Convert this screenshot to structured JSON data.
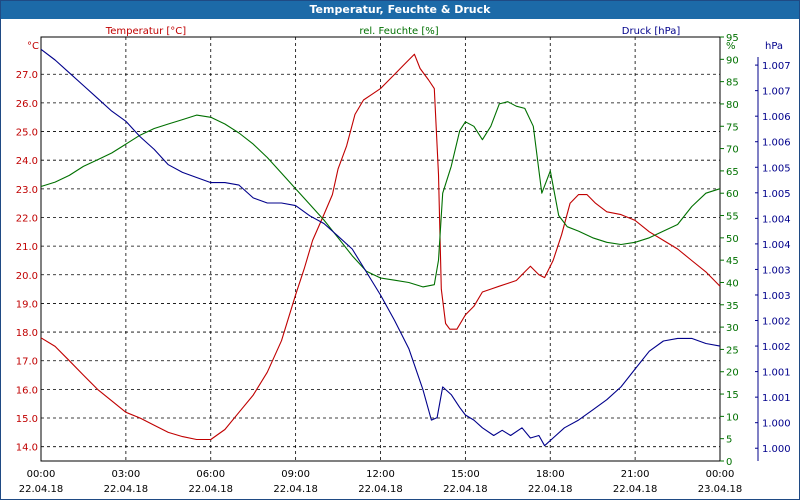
{
  "window": {
    "title": "Temperatur, Feuchte & Druck"
  },
  "colors": {
    "temperature": "#c00000",
    "humidity": "#007000",
    "pressure": "#00008b",
    "grid": "#000000",
    "title_bar": "#1c6aa8"
  },
  "chart_data": {
    "type": "line",
    "title": "Temperatur, Feuchte & Druck",
    "grid": true,
    "x": {
      "range": [
        0,
        24
      ],
      "tick_times": [
        "00:00",
        "03:00",
        "06:00",
        "09:00",
        "12:00",
        "15:00",
        "18:00",
        "21:00",
        "00:00"
      ],
      "tick_dates": [
        "22.04.18",
        "22.04.18",
        "22.04.18",
        "22.04.18",
        "22.04.18",
        "22.04.18",
        "22.04.18",
        "22.04.18",
        "23.04.18"
      ]
    },
    "axes": {
      "temperature": {
        "unit_label": "°C",
        "range": [
          13.5,
          28.3
        ],
        "ticks": [
          "14.0",
          "15.0",
          "16.0",
          "17.0",
          "18.0",
          "19.0",
          "20.0",
          "21.0",
          "22.0",
          "23.0",
          "24.0",
          "25.0",
          "26.0",
          "27.0"
        ]
      },
      "humidity": {
        "unit_label": "%",
        "range": [
          0,
          95
        ],
        "ticks": [
          "0",
          "5",
          "10",
          "15",
          "20",
          "25",
          "30",
          "35",
          "40",
          "45",
          "50",
          "55",
          "60",
          "65",
          "70",
          "75",
          "80",
          "85",
          "90",
          "95"
        ]
      },
      "pressure": {
        "unit_label": "hPa",
        "range": [
          0.9995,
          1.0078
        ],
        "ticks": [
          "1.000",
          "1.000",
          "1.001",
          "1.001",
          "1.002",
          "1.002",
          "1.003",
          "1.003",
          "1.004",
          "1.004",
          "1.005",
          "1.005",
          "1.006",
          "1.006",
          "1.007",
          "1.007"
        ]
      }
    },
    "series": [
      {
        "name": "Temperatur [°C]",
        "axis": "temperature",
        "color": "#c00000",
        "points": [
          [
            0.0,
            17.8
          ],
          [
            0.5,
            17.5
          ],
          [
            1.0,
            17.0
          ],
          [
            1.5,
            16.5
          ],
          [
            2.0,
            16.0
          ],
          [
            2.5,
            15.6
          ],
          [
            3.0,
            15.2
          ],
          [
            3.5,
            15.0
          ],
          [
            4.0,
            14.75
          ],
          [
            4.5,
            14.5
          ],
          [
            5.0,
            14.35
          ],
          [
            5.5,
            14.25
          ],
          [
            6.0,
            14.25
          ],
          [
            6.5,
            14.6
          ],
          [
            7.0,
            15.2
          ],
          [
            7.5,
            15.8
          ],
          [
            8.0,
            16.6
          ],
          [
            8.5,
            17.7
          ],
          [
            9.0,
            19.3
          ],
          [
            9.3,
            20.2
          ],
          [
            9.6,
            21.2
          ],
          [
            10.0,
            22.1
          ],
          [
            10.3,
            22.8
          ],
          [
            10.5,
            23.7
          ],
          [
            10.8,
            24.5
          ],
          [
            11.1,
            25.6
          ],
          [
            11.4,
            26.1
          ],
          [
            11.7,
            26.3
          ],
          [
            12.0,
            26.5
          ],
          [
            12.3,
            26.8
          ],
          [
            12.6,
            27.1
          ],
          [
            12.8,
            27.3
          ],
          [
            13.0,
            27.5
          ],
          [
            13.2,
            27.7
          ],
          [
            13.4,
            27.2
          ],
          [
            13.7,
            26.8
          ],
          [
            13.9,
            26.5
          ],
          [
            14.05,
            23.5
          ],
          [
            14.15,
            19.5
          ],
          [
            14.3,
            18.3
          ],
          [
            14.45,
            18.1
          ],
          [
            14.7,
            18.1
          ],
          [
            15.0,
            18.6
          ],
          [
            15.3,
            18.9
          ],
          [
            15.6,
            19.4
          ],
          [
            15.9,
            19.5
          ],
          [
            16.2,
            19.6
          ],
          [
            16.5,
            19.7
          ],
          [
            16.8,
            19.8
          ],
          [
            17.1,
            20.1
          ],
          [
            17.3,
            20.3
          ],
          [
            17.6,
            20.0
          ],
          [
            17.8,
            19.9
          ],
          [
            18.1,
            20.5
          ],
          [
            18.4,
            21.4
          ],
          [
            18.7,
            22.5
          ],
          [
            19.0,
            22.8
          ],
          [
            19.3,
            22.8
          ],
          [
            19.6,
            22.5
          ],
          [
            20.0,
            22.2
          ],
          [
            20.5,
            22.1
          ],
          [
            21.0,
            21.9
          ],
          [
            21.5,
            21.5
          ],
          [
            22.0,
            21.2
          ],
          [
            22.5,
            20.9
          ],
          [
            23.0,
            20.5
          ],
          [
            23.5,
            20.1
          ],
          [
            24.0,
            19.6
          ]
        ]
      },
      {
        "name": "rel. Feuchte [%]",
        "axis": "humidity",
        "color": "#007000",
        "points": [
          [
            0.0,
            61.5
          ],
          [
            0.5,
            62.5
          ],
          [
            1.0,
            64.0
          ],
          [
            1.5,
            66.0
          ],
          [
            2.0,
            67.5
          ],
          [
            2.5,
            69.0
          ],
          [
            3.0,
            71.0
          ],
          [
            3.5,
            73.0
          ],
          [
            4.0,
            74.5
          ],
          [
            4.5,
            75.5
          ],
          [
            5.0,
            76.5
          ],
          [
            5.5,
            77.5
          ],
          [
            6.0,
            77.0
          ],
          [
            6.5,
            75.5
          ],
          [
            7.0,
            73.5
          ],
          [
            7.5,
            71.0
          ],
          [
            8.0,
            68.0
          ],
          [
            8.5,
            64.5
          ],
          [
            9.0,
            61.0
          ],
          [
            9.5,
            57.5
          ],
          [
            10.0,
            54.0
          ],
          [
            10.5,
            50.0
          ],
          [
            11.0,
            46.0
          ],
          [
            11.5,
            42.5
          ],
          [
            12.0,
            41.0
          ],
          [
            12.5,
            40.5
          ],
          [
            13.0,
            40.0
          ],
          [
            13.5,
            39.0
          ],
          [
            13.9,
            39.5
          ],
          [
            14.05,
            45.0
          ],
          [
            14.2,
            60.0
          ],
          [
            14.5,
            66.0
          ],
          [
            14.8,
            74.0
          ],
          [
            15.0,
            76.0
          ],
          [
            15.3,
            75.0
          ],
          [
            15.6,
            72.0
          ],
          [
            15.9,
            75.0
          ],
          [
            16.2,
            80.0
          ],
          [
            16.5,
            80.5
          ],
          [
            16.8,
            79.5
          ],
          [
            17.1,
            79.0
          ],
          [
            17.4,
            75.0
          ],
          [
            17.7,
            60.0
          ],
          [
            18.0,
            65.0
          ],
          [
            18.3,
            55.0
          ],
          [
            18.6,
            52.5
          ],
          [
            19.0,
            51.5
          ],
          [
            19.5,
            50.0
          ],
          [
            20.0,
            49.0
          ],
          [
            20.5,
            48.5
          ],
          [
            21.0,
            49.0
          ],
          [
            21.5,
            50.0
          ],
          [
            22.0,
            51.5
          ],
          [
            22.5,
            53.0
          ],
          [
            23.0,
            57.0
          ],
          [
            23.5,
            60.0
          ],
          [
            24.0,
            61.0
          ]
        ]
      },
      {
        "name": "Druck [hPa]",
        "axis": "pressure",
        "color": "#00008b",
        "points": [
          [
            0.0,
            1.00756
          ],
          [
            0.5,
            1.00735
          ],
          [
            1.0,
            1.0071
          ],
          [
            1.5,
            1.00685
          ],
          [
            2.0,
            1.0066
          ],
          [
            2.5,
            1.00635
          ],
          [
            3.0,
            1.00615
          ],
          [
            3.5,
            1.00585
          ],
          [
            4.0,
            1.0056
          ],
          [
            4.5,
            1.0053
          ],
          [
            5.0,
            1.00515
          ],
          [
            5.5,
            1.00505
          ],
          [
            6.0,
            1.00495
          ],
          [
            6.5,
            1.00495
          ],
          [
            7.0,
            1.0049
          ],
          [
            7.5,
            1.00465
          ],
          [
            8.0,
            1.00455
          ],
          [
            8.5,
            1.00455
          ],
          [
            9.0,
            1.0045
          ],
          [
            9.5,
            1.0043
          ],
          [
            10.0,
            1.00415
          ],
          [
            10.5,
            1.0039
          ],
          [
            11.0,
            1.00365
          ],
          [
            11.5,
            1.0032
          ],
          [
            12.0,
            1.00275
          ],
          [
            12.5,
            1.00225
          ],
          [
            13.0,
            1.0017
          ],
          [
            13.5,
            1.0009
          ],
          [
            13.8,
            1.0003
          ],
          [
            14.0,
            1.00035
          ],
          [
            14.2,
            1.00095
          ],
          [
            14.5,
            1.0008
          ],
          [
            14.8,
            1.00055
          ],
          [
            15.0,
            1.0004
          ],
          [
            15.3,
            1.0003
          ],
          [
            15.6,
            1.00015
          ],
          [
            16.0,
            1.0
          ],
          [
            16.3,
            1.0001
          ],
          [
            16.6,
            1.0
          ],
          [
            17.0,
            1.00015
          ],
          [
            17.3,
            0.99995
          ],
          [
            17.6,
            1.0
          ],
          [
            17.8,
            0.9998
          ],
          [
            18.1,
            0.99995
          ],
          [
            18.5,
            1.00015
          ],
          [
            19.0,
            1.0003
          ],
          [
            19.5,
            1.0005
          ],
          [
            20.0,
            1.0007
          ],
          [
            20.5,
            1.00095
          ],
          [
            21.0,
            1.0013
          ],
          [
            21.5,
            1.00165
          ],
          [
            22.0,
            1.00185
          ],
          [
            22.5,
            1.0019
          ],
          [
            23.0,
            1.0019
          ],
          [
            23.5,
            1.0018
          ],
          [
            24.0,
            1.00175
          ]
        ]
      }
    ]
  }
}
